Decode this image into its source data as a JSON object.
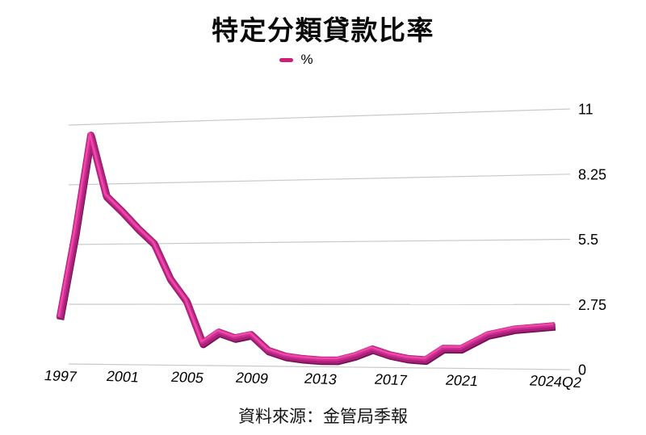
{
  "page": {
    "background": "#ffffff"
  },
  "title": "特定分類貸款比率",
  "legend": {
    "label": "%",
    "swatch_color": "#cc2076"
  },
  "source": "資料來源：金管局季報",
  "chart_data": {
    "type": "line",
    "style": "3d-ribbon",
    "title": "特定分類貸款比率",
    "xlabel": "",
    "ylabel": "%",
    "x": [
      "1997",
      "1998",
      "1999",
      "2000",
      "2001",
      "2002",
      "2003",
      "2004",
      "2005",
      "2006",
      "2007",
      "2008",
      "2009",
      "2010",
      "2011",
      "2012",
      "2013",
      "2014",
      "2015",
      "2016",
      "2017",
      "2018",
      "2019",
      "2020",
      "2021",
      "2022",
      "2023",
      "2024Q2"
    ],
    "series": [
      {
        "name": "%",
        "color": "#cc2076",
        "values": [
          2.1,
          6.0,
          10.5,
          7.7,
          7.0,
          6.2,
          5.5,
          3.9,
          2.9,
          1.0,
          1.5,
          1.25,
          1.4,
          0.7,
          0.45,
          0.35,
          0.3,
          0.3,
          0.5,
          0.8,
          0.55,
          0.4,
          0.35,
          0.85,
          0.85,
          1.45,
          1.7,
          1.85
        ]
      }
    ],
    "x_tick_labels": [
      "1997",
      "2001",
      "2005",
      "2009",
      "2013",
      "2017",
      "2021",
      "2024Q2"
    ],
    "y_ticks": [
      0,
      2.75,
      5.5,
      8.25,
      11
    ],
    "y_tick_labels": [
      "0",
      "2.75",
      "5.5",
      "8.25",
      "11"
    ],
    "ylim": [
      0,
      11
    ],
    "grid": true,
    "y_axis_side": "right",
    "legend_position": "top",
    "gridline_color": "#c9c9c9",
    "ribbon_colors": {
      "shadow": "#701250",
      "base": "#a8207a",
      "mid": "#ce2d90",
      "highlight": "#ef4aa9"
    }
  }
}
